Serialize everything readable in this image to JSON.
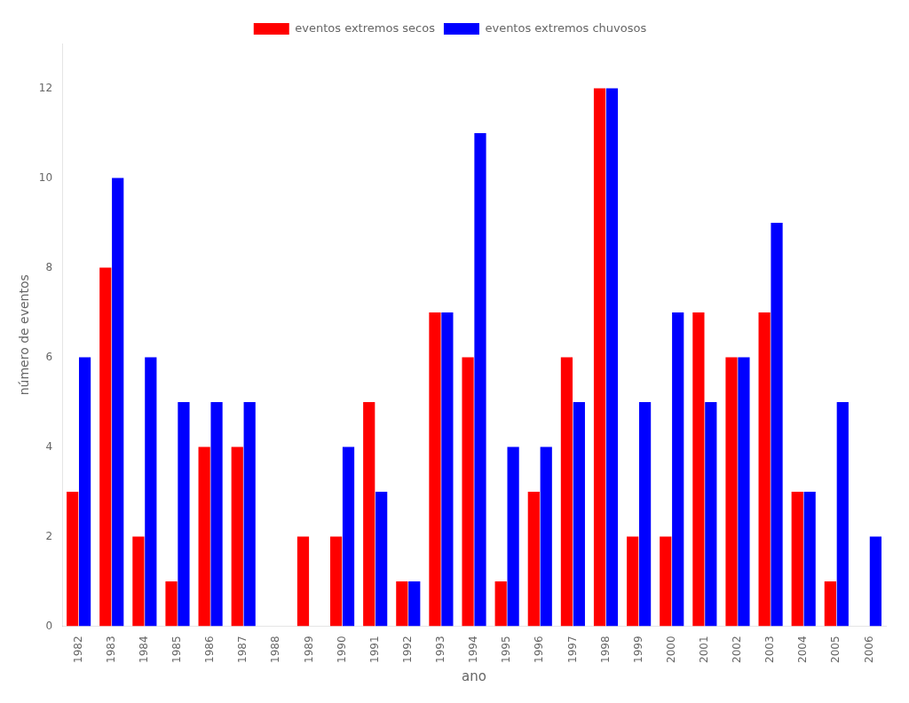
{
  "chart_data": {
    "type": "bar",
    "categories": [
      "1982",
      "1983",
      "1984",
      "1985",
      "1986",
      "1987",
      "1988",
      "1989",
      "1990",
      "1991",
      "1992",
      "1993",
      "1994",
      "1995",
      "1996",
      "1997",
      "1998",
      "1999",
      "2000",
      "2001",
      "2002",
      "2003",
      "2004",
      "2005",
      "2006"
    ],
    "series": [
      {
        "name": "eventos extremos secos",
        "color": "#ff0000",
        "values": [
          3,
          8,
          2,
          1,
          4,
          4,
          0,
          2,
          2,
          5,
          1,
          7,
          6,
          1,
          3,
          6,
          12,
          2,
          2,
          7,
          6,
          7,
          3,
          1,
          0
        ]
      },
      {
        "name": "eventos extremos chuvosos",
        "color": "#0000ff",
        "values": [
          6,
          10,
          6,
          5,
          5,
          5,
          0,
          0,
          4,
          3,
          1,
          7,
          11,
          4,
          4,
          5,
          12,
          5,
          7,
          5,
          6,
          9,
          3,
          5,
          2
        ]
      }
    ],
    "xlabel": "ano",
    "ylabel": "número de eventos",
    "ylim": [
      0,
      13
    ],
    "yticks": [
      0,
      2,
      4,
      6,
      8,
      10,
      12
    ],
    "grid": false,
    "legend": "top"
  }
}
